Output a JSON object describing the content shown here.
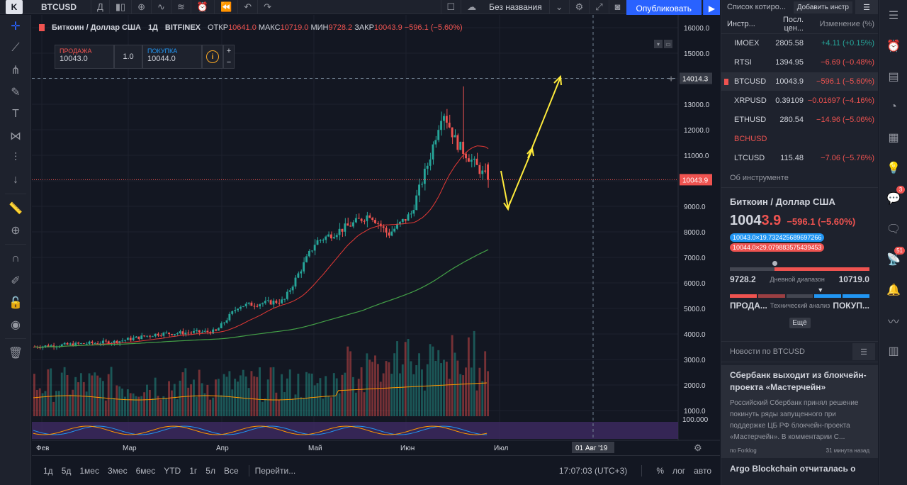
{
  "topbar": {
    "logo": "K",
    "symbol": "BTCUSD",
    "interval": "Д",
    "layout_name": "Без названия",
    "publish_label": "Опубликовать"
  },
  "legend": {
    "pair": "Биткоин / Доллар США",
    "interval": "1Д",
    "exchange": "BITFINEX",
    "open_label": "ОТКР",
    "open": "10641.0",
    "high_label": "МАКС",
    "high": "10719.0",
    "low_label": "МИН",
    "low": "9728.2",
    "close_label": "ЗАКР",
    "close": "10043.9",
    "change": "−596.1 (−5.60%)"
  },
  "trade": {
    "sell_label": "ПРОДАЖА",
    "sell_price": "10043.0",
    "qty": "1.0",
    "buy_label": "ПОКУПКА",
    "buy_price": "10044.0"
  },
  "price_axis": {
    "labels": [
      "16000.0",
      "15000.0",
      "14000.0",
      "13000.0",
      "12000.0",
      "11000.0",
      "10000.0",
      "9000.0",
      "8000.0",
      "7000.0",
      "6000.0",
      "5000.0",
      "4000.0",
      "3000.0",
      "2000.0",
      "1000.0"
    ],
    "crosshair_price": "14014.3",
    "last_price": "10043.9",
    "osc_label": "100.000"
  },
  "time_axis": {
    "labels": [
      "Фев",
      "Мар",
      "Апр",
      "Май",
      "Июн",
      "Июл"
    ],
    "crosshair_date": "01 Авг '19"
  },
  "bottombar": {
    "ranges": [
      "1д",
      "5д",
      "1мес",
      "3мес",
      "6мес",
      "YTD",
      "1г",
      "5л",
      "Все"
    ],
    "goto": "Перейти...",
    "time": "17:07:03 (UTC+3)",
    "pct": "%",
    "log": "лог",
    "auto": "авто"
  },
  "watchlist": {
    "title": "Список котиро...",
    "add": "Добавить инстр",
    "col_symbol": "Инстр...",
    "col_last": "Посл. цен...",
    "col_change": "Изменение (%)",
    "rows": [
      {
        "symbol": "IMOEX",
        "last": "2805.58",
        "change": "+4.11 (+0.15%)",
        "dir": "pos"
      },
      {
        "symbol": "RTSI",
        "last": "1394.95",
        "change": "−6.69 (−0.48%)",
        "dir": "neg"
      },
      {
        "symbol": "BTCUSD",
        "last": "10043.9",
        "change": "−596.1 (−5.60%)",
        "dir": "neg"
      },
      {
        "symbol": "XRPUSD",
        "last": "0.39109",
        "change": "−0.01697 (−4.16%)",
        "dir": "neg"
      },
      {
        "symbol": "ETHUSD",
        "last": "280.54",
        "change": "−14.96 (−5.06%)",
        "dir": "neg"
      },
      {
        "symbol": "BCHUSD",
        "last": "",
        "change": "",
        "dir": "neg"
      },
      {
        "symbol": "LTCUSD",
        "last": "115.48",
        "change": "−7.06 (−5.76%)",
        "dir": "neg"
      }
    ]
  },
  "details": {
    "header": "Об инструменте",
    "title": "Биткоин / Доллар США",
    "price_main": "1004",
    "price_tail": "3.9",
    "change": "−596.1 (−5.60%)",
    "bid": "10043.0×19.732425689697266",
    "ask": "10044.0×29.079883575439453",
    "range_low": "9728.2",
    "range_label": "Дневной диапазон",
    "range_high": "10719.0",
    "day_position": 0.32,
    "tech_sell": "ПРОДА...",
    "tech_label": "Технический анализ",
    "tech_buy": "ПОКУП...",
    "more": "Ещё"
  },
  "news": {
    "header": "Новости по BTCUSD",
    "items": [
      {
        "title": "Сбербанк выходит из блокчейн-проекта «Мастерчейн»",
        "text": "Российский Сбербанк принял решение покинуть ряды запущенного при поддержке ЦБ РФ блокчейн-проекта «Мастерчейн». В комментарии С...",
        "source": "по Forklog",
        "time": "31 минута назад"
      }
    ],
    "next_title": "Argo Blockchain отчиталась о"
  },
  "right_strip": {
    "badge_chat": "3",
    "badge_streams": "51"
  },
  "colors": {
    "up": "#26a69a",
    "down": "#ef5350",
    "accent": "#2962ff",
    "ma_fast": "#e53935",
    "ma_slow": "#43a047",
    "arrow": "#ffeb3b"
  }
}
